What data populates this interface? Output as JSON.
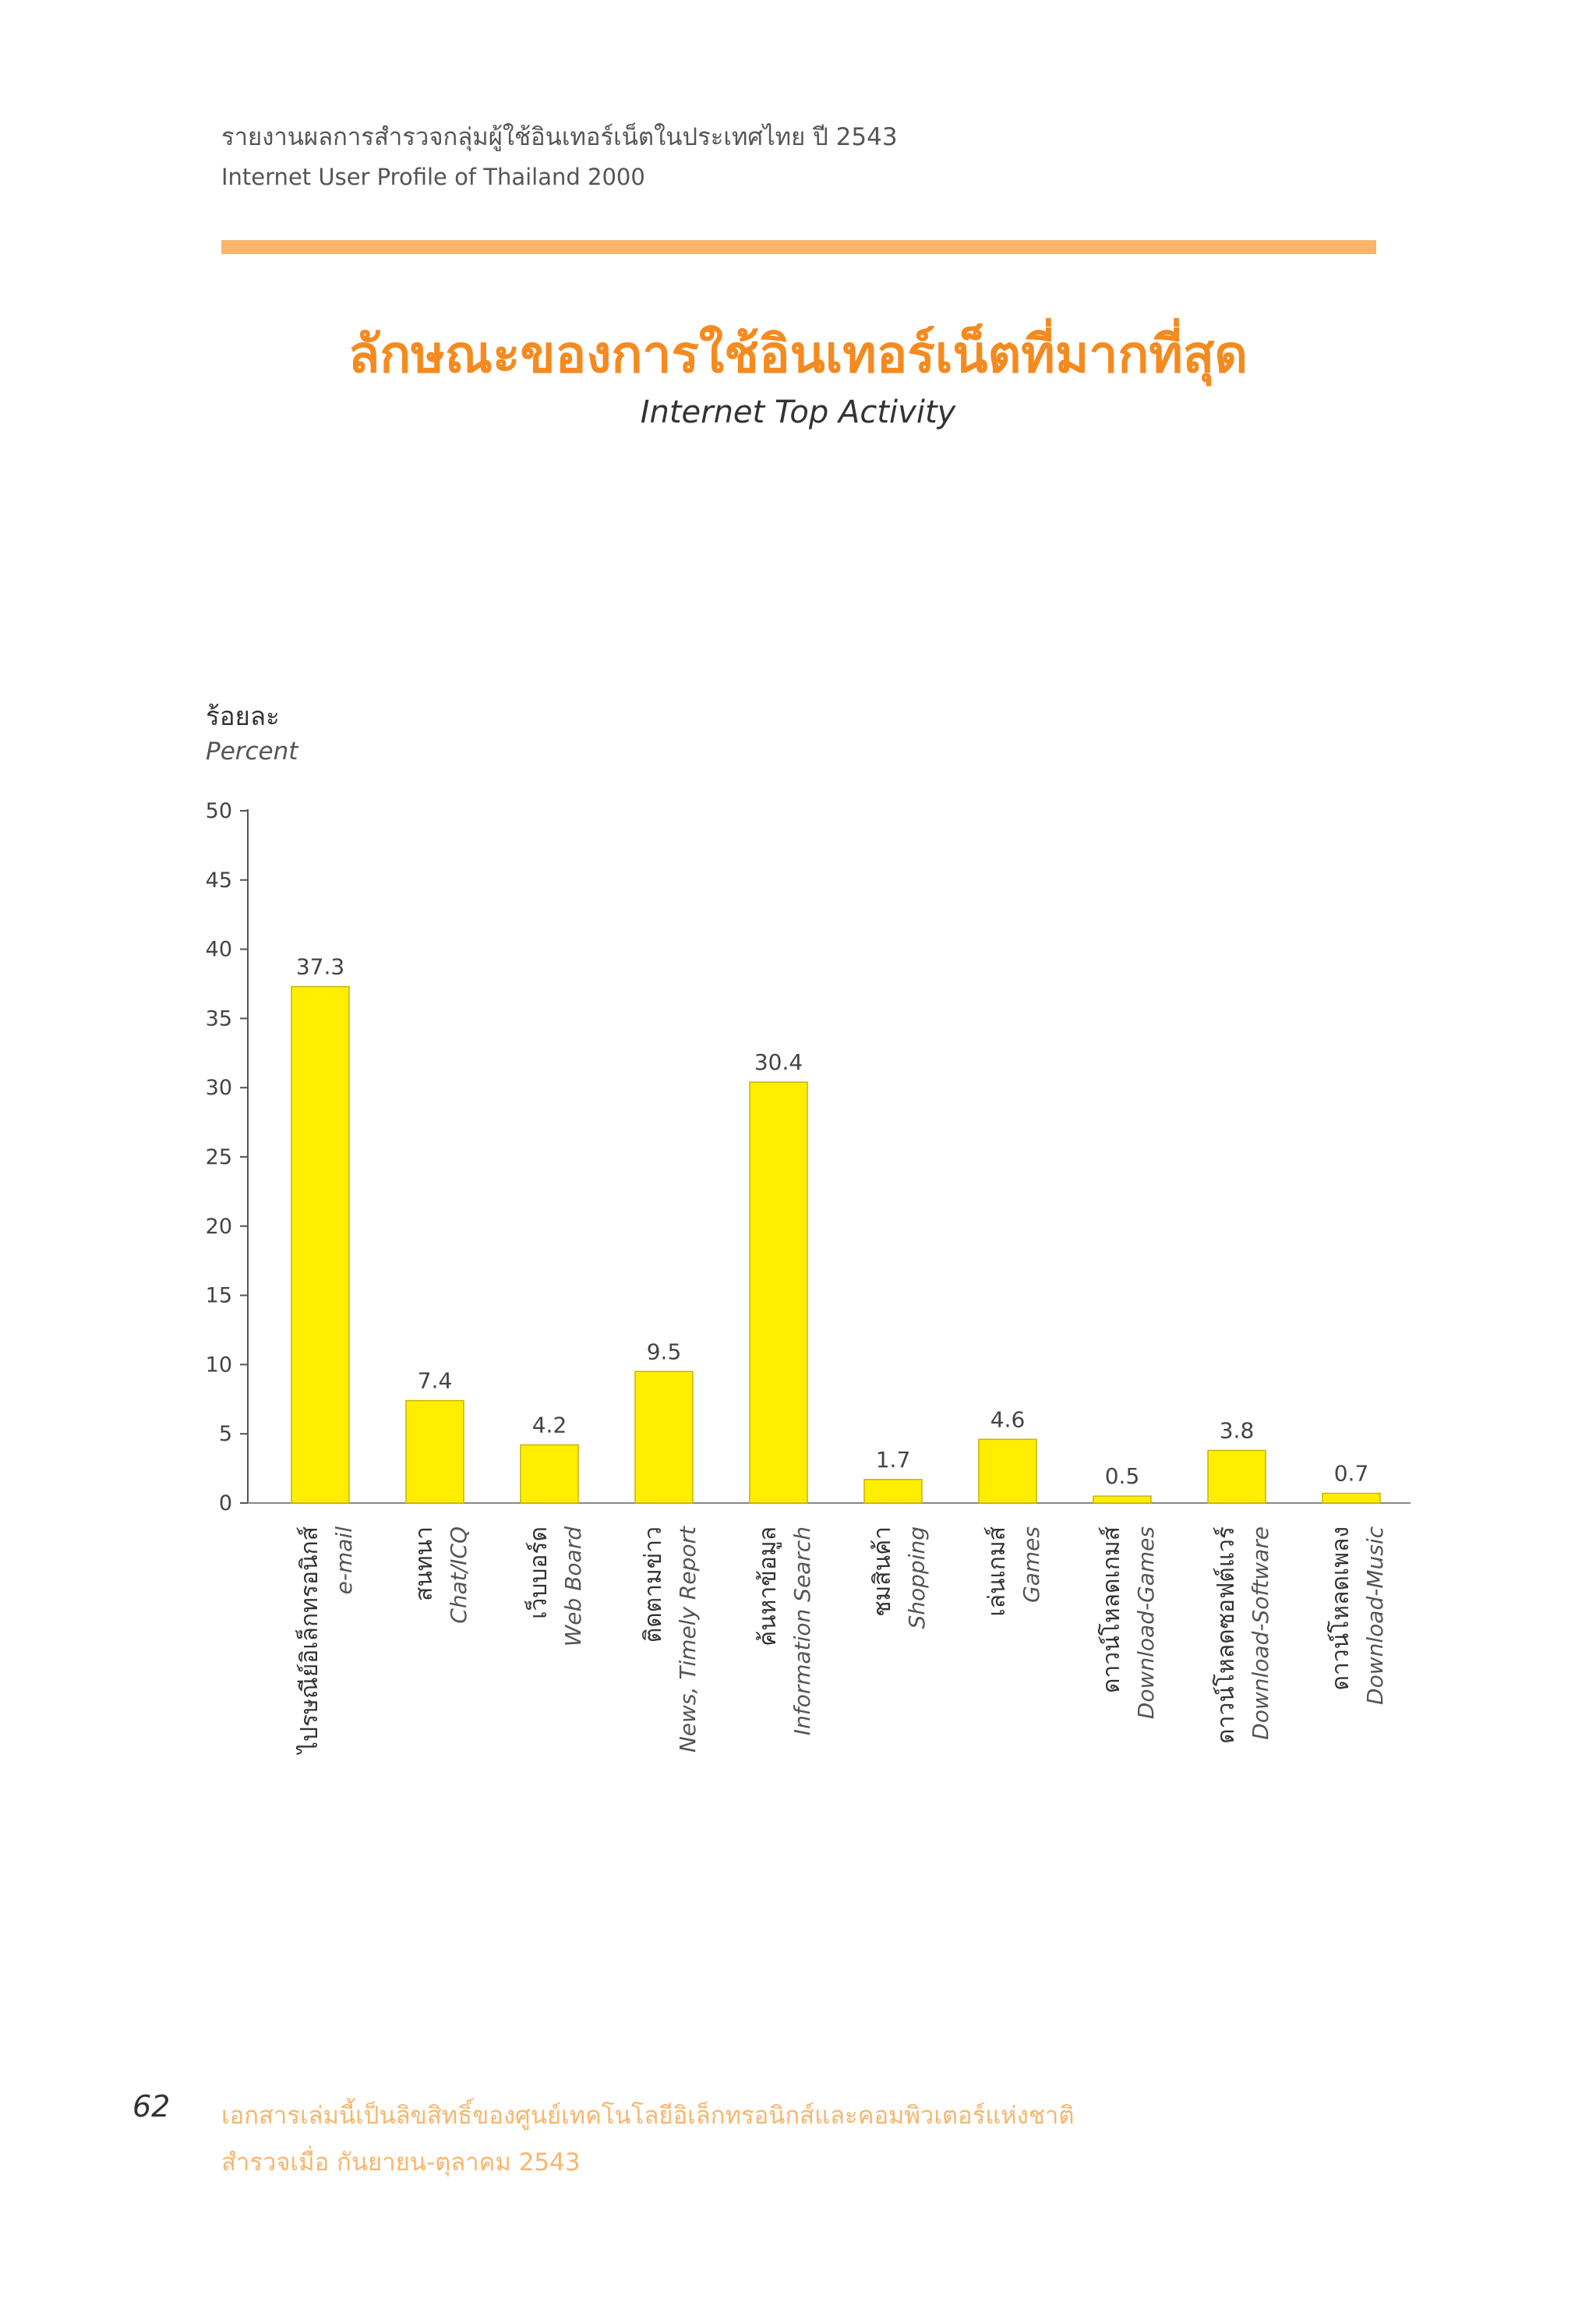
{
  "header": {
    "line_th": "รายงานผลการสำรวจกลุ่มผู้ใช้อินเทอร์เน็ตในประเทศไทย ปี 2543",
    "line_en": "Internet User Profile of Thailand 2000"
  },
  "title": {
    "th": "ลักษณะของการใช้อินเทอร์เน็ตที่มากที่สุด",
    "en": "Internet Top Activity"
  },
  "colors": {
    "bar": "#ffee00",
    "bar_stroke": "#c9b400",
    "accent": "#f58a1f",
    "rule": "#f7b66c"
  },
  "chart_data": {
    "type": "bar",
    "ylabel_th": "ร้อยละ",
    "ylabel_en": "Percent",
    "ylim": [
      0,
      50
    ],
    "yticks": [
      0,
      5,
      10,
      15,
      20,
      25,
      30,
      35,
      40,
      45,
      50
    ],
    "grid": false,
    "categories": [
      {
        "th": "ไปรษณีย์อิเล็กทรอนิกส์",
        "en": "e-mail"
      },
      {
        "th": "สนทนา",
        "en": "Chat/ICQ"
      },
      {
        "th": "เว็บบอร์ด",
        "en": "Web Board"
      },
      {
        "th": "ติดตามข่าว",
        "en": "News, Timely Report"
      },
      {
        "th": "ค้นหาข้อมูล",
        "en": "Information Search"
      },
      {
        "th": "ชมสินค้า",
        "en": "Shopping"
      },
      {
        "th": "เล่นเกมส์",
        "en": "Games"
      },
      {
        "th": "ดาวน์โหลดเกมส์",
        "en": "Download-Games"
      },
      {
        "th": "ดาวน์โหลดซอฟต์แวร์",
        "en": "Download-Software"
      },
      {
        "th": "ดาวน์โหลดเพลง",
        "en": "Download-Music"
      }
    ],
    "values": [
      37.3,
      7.4,
      4.2,
      9.5,
      30.4,
      1.7,
      4.6,
      0.5,
      3.8,
      0.7
    ],
    "value_labels": [
      "37.3",
      "7.4",
      "4.2",
      "9.5",
      "30.4",
      "1.7",
      "4.6",
      "0.5",
      "3.8",
      "0.7"
    ]
  },
  "footer": {
    "page_number": "62",
    "line1": "เอกสารเล่มนี้เป็นลิขสิทธิ์ของศูนย์เทคโนโลยีอิเล็กทรอนิกส์และคอมพิวเตอร์แห่งชาติ",
    "line2": "สำรวจเมื่อ กันยายน-ตุลาคม 2543"
  }
}
